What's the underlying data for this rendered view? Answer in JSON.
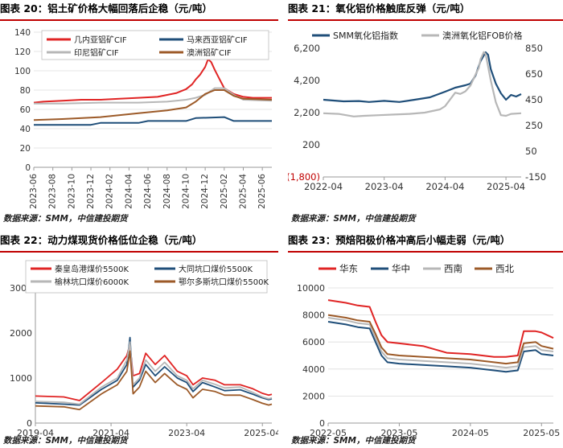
{
  "panels": [
    {
      "title": "图表 20：铝土矿价格大幅回落后企稳（元/吨）",
      "source": "数据来源：SMM，中信建投期货",
      "chart_data": {
        "type": "line",
        "yticks": [
          0,
          20,
          40,
          60,
          80,
          100,
          120,
          140
        ],
        "ylim": [
          0,
          140
        ],
        "xticks": [
          "2023-06",
          "2023-08",
          "2023-10",
          "2023-12",
          "2024-02",
          "2024-04",
          "2024-06",
          "2024-08",
          "2024-10",
          "2024-12",
          "2025-02",
          "2025-04",
          "2025-06"
        ],
        "xrange": [
          "2023-06",
          "2025-07"
        ],
        "series": [
          {
            "name": "几内亚铝矿CIF",
            "color": "#e02424",
            "x": [
              "2023-06",
              "2023-07",
              "2023-09",
              "2023-11",
              "2024-01",
              "2024-03",
              "2024-05",
              "2024-07",
              "2024-08",
              "2024-09",
              "2024-10",
              "2024-10-20",
              "2024-11",
              "2024-11-15",
              "2024-12",
              "2024-12-10",
              "2024-12-20",
              "2025-01",
              "2025-01-15",
              "2025-02",
              "2025-03",
              "2025-04",
              "2025-05",
              "2025-06",
              "2025-07"
            ],
            "y": [
              67,
              68,
              69,
              70,
              70,
              71,
              72,
              73,
              75,
              77,
              81,
              86,
              91,
              96,
              104,
              112,
              109,
              101,
              92,
              82,
              76,
              73,
              72,
              72,
              72
            ]
          },
          {
            "name": "马来西亚铝矿CIF",
            "color": "#1f4e79",
            "x": [
              "2023-06",
              "2023-07",
              "2023-12",
              "2024-01",
              "2024-05",
              "2024-06",
              "2024-10",
              "2024-11",
              "2025-02",
              "2025-03",
              "2025-07"
            ],
            "y": [
              44,
              44,
              44,
              46,
              46,
              48,
              48,
              51,
              52,
              48,
              48
            ]
          },
          {
            "name": "印尼铝矿CIF",
            "color": "#b7b7b7",
            "x": [
              "2023-06",
              "2023-09",
              "2024-01",
              "2024-05",
              "2024-08",
              "2024-10",
              "2024-11",
              "2024-12",
              "2025-01",
              "2025-02",
              "2025-03",
              "2025-04",
              "2025-07"
            ],
            "y": [
              66,
              66,
              67,
              67,
              68,
              70,
              72,
              75,
              82,
              82,
              75,
              70,
              69
            ]
          },
          {
            "name": "澳洲铝矿CIF",
            "color": "#9c5a28",
            "x": [
              "2023-06",
              "2023-09",
              "2024-01",
              "2024-05",
              "2024-08",
              "2024-10",
              "2024-11",
              "2024-12",
              "2025-01",
              "2025-02",
              "2025-03",
              "2025-04",
              "2025-07"
            ],
            "y": [
              49,
              50,
              52,
              56,
              59,
              62,
              68,
              76,
              80,
              80,
              74,
              71,
              70
            ]
          }
        ]
      }
    },
    {
      "title": "图表 21：氧化铝价格触底反弹（元/吨）",
      "source": "数据来源：SMM，中信建投期货",
      "chart_data": {
        "type": "line",
        "yticks_left": [
          "6,200",
          "4,200",
          "2,200",
          "200",
          "(1,800)"
        ],
        "ylim_left": [
          -1800,
          6200
        ],
        "yticks_right": [
          "850",
          "650",
          "450",
          "250",
          "50",
          "-150"
        ],
        "ylim_right": [
          -150,
          850
        ],
        "xticks": [
          "2022-04",
          "2023-04",
          "2024-04",
          "2025-04"
        ],
        "xrange": [
          "2022-04",
          "2025-07"
        ],
        "series": [
          {
            "name": "SMM氧化铝指数",
            "axis": "left",
            "color": "#1f4e79",
            "x": [
              "2022-04",
              "2022-08",
              "2022-11",
              "2023-01",
              "2023-04",
              "2023-07",
              "2023-10",
              "2024-01",
              "2024-04",
              "2024-06",
              "2024-08",
              "2024-09",
              "2024-10",
              "2024-11",
              "2024-11-20",
              "2024-12",
              "2024-12-15",
              "2025-01",
              "2025-02",
              "2025-03",
              "2025-04",
              "2025-05",
              "2025-06",
              "2025-07"
            ],
            "y": [
              3000,
              2900,
              2920,
              2860,
              2930,
              2860,
              3000,
              3150,
              3500,
              3750,
              3900,
              4000,
              4500,
              5400,
              5750,
              5950,
              5800,
              4900,
              4000,
              3400,
              3000,
              3300,
              3200,
              3350
            ]
          },
          {
            "name": "澳洲氧化铝FOB价格",
            "axis": "right",
            "color": "#b7b7b7",
            "x": [
              "2022-04",
              "2022-07",
              "2022-10",
              "2022-12",
              "2023-03",
              "2023-06",
              "2023-09",
              "2023-12",
              "2024-03",
              "2024-04",
              "2024-06",
              "2024-07",
              "2024-08",
              "2024-09",
              "2024-10",
              "2024-10-20",
              "2024-11",
              "2024-11-20",
              "2024-12",
              "2024-12-10",
              "2025-01",
              "2025-02",
              "2025-03",
              "2025-04",
              "2025-05",
              "2025-07"
            ],
            "y": [
              345,
              340,
              320,
              325,
              330,
              335,
              340,
              350,
              375,
              400,
              505,
              495,
              515,
              560,
              645,
              695,
              765,
              820,
              805,
              745,
              600,
              430,
              330,
              325,
              340,
              345
            ]
          }
        ]
      }
    },
    {
      "title": "图表 22：动力煤现货价格低位企稳（元/吨）",
      "source": "数据来源：SMM，中信建投期货",
      "chart_data": {
        "type": "line",
        "yticks": [
          0,
          1000,
          2000,
          3000
        ],
        "ylim": [
          0,
          3000
        ],
        "xticks": [
          "2019-04",
          "2021-04",
          "2023-04",
          "2025-04"
        ],
        "xrange": [
          "2019-04",
          "2025-07"
        ],
        "series": [
          {
            "name": "秦皇岛港煤价5500K",
            "color": "#e02424",
            "x": [
              "2019-04",
              "2020-01",
              "2020-06",
              "2021-01",
              "2021-06",
              "2021-09",
              "2021-10",
              "2021-11",
              "2022-01",
              "2022-03",
              "2022-06",
              "2022-09",
              "2023-01",
              "2023-04",
              "2023-06",
              "2023-09",
              "2024-01",
              "2024-04",
              "2024-09",
              "2025-01",
              "2025-04",
              "2025-06",
              "2025-07"
            ],
            "y": [
              600,
              580,
              500,
              900,
              1200,
              1500,
              1750,
              1050,
              1100,
              1550,
              1300,
              1500,
              1150,
              1050,
              850,
              1000,
              950,
              850,
              850,
              760,
              660,
              620,
              640
            ]
          },
          {
            "name": "大同坑口煤价5500K",
            "color": "#1f4e79",
            "x": [
              "2019-04",
              "2020-01",
              "2020-06",
              "2021-01",
              "2021-06",
              "2021-09",
              "2021-10",
              "2021-11",
              "2022-01",
              "2022-03",
              "2022-06",
              "2022-09",
              "2023-01",
              "2023-04",
              "2023-06",
              "2023-09",
              "2024-01",
              "2024-04",
              "2024-09",
              "2025-01",
              "2025-04",
              "2025-06",
              "2025-07"
            ],
            "y": [
              450,
              420,
              400,
              750,
              950,
              1300,
              1900,
              800,
              950,
              1300,
              1050,
              1250,
              1000,
              900,
              700,
              900,
              800,
              720,
              740,
              640,
              560,
              520,
              540
            ]
          },
          {
            "name": "榆林坑口煤价6000K",
            "color": "#b7b7b7",
            "x": [
              "2019-04",
              "2020-01",
              "2020-06",
              "2021-01",
              "2021-06",
              "2021-09",
              "2021-10",
              "2021-11",
              "2022-01",
              "2022-03",
              "2022-06",
              "2022-09",
              "2023-01",
              "2023-04",
              "2023-06",
              "2023-09",
              "2024-01",
              "2024-04",
              "2024-09",
              "2025-01",
              "2025-04",
              "2025-06",
              "2025-07"
            ],
            "y": [
              480,
              460,
              420,
              800,
              1000,
              1400,
              1800,
              850,
              1000,
              1400,
              1150,
              1350,
              1050,
              950,
              760,
              950,
              860,
              780,
              800,
              680,
              580,
              540,
              560
            ]
          },
          {
            "name": "鄂尔多斯坑口煤价5500K",
            "color": "#9c5a28",
            "x": [
              "2019-04",
              "2020-01",
              "2020-06",
              "2021-01",
              "2021-06",
              "2021-09",
              "2021-10",
              "2021-11",
              "2022-01",
              "2022-03",
              "2022-06",
              "2022-09",
              "2023-01",
              "2023-04",
              "2023-06",
              "2023-09",
              "2024-01",
              "2024-04",
              "2024-09",
              "2025-01",
              "2025-04",
              "2025-06",
              "2025-07"
            ],
            "y": [
              380,
              360,
              300,
              650,
              850,
              1150,
              1600,
              650,
              800,
              1150,
              900,
              1100,
              850,
              750,
              560,
              750,
              700,
              620,
              620,
              520,
              440,
              400,
              420
            ]
          }
        ]
      }
    },
    {
      "title": "图表 23：预焙阳极价格冲高后小幅走弱（元/吨）",
      "source": "数据来源：SMM，中信建投期货",
      "chart_data": {
        "type": "line",
        "yticks": [
          0,
          2000,
          4000,
          6000,
          8000,
          10000
        ],
        "ylim": [
          0,
          10000
        ],
        "xticks": [
          "2022-05",
          "2023-05",
          "2024-05",
          "2025-05"
        ],
        "xrange": [
          "2022-05",
          "2025-07"
        ],
        "series": [
          {
            "name": "华东",
            "color": "#e02424",
            "x": [
              "2022-05",
              "2022-08",
              "2022-10",
              "2022-12",
              "2023-01",
              "2023-02",
              "2023-03",
              "2023-05",
              "2023-09",
              "2024-01",
              "2024-05",
              "2024-09",
              "2024-11",
              "2025-01",
              "2025-02",
              "2025-04",
              "2025-05",
              "2025-07"
            ],
            "y": [
              9100,
              8900,
              8700,
              8600,
              7500,
              6500,
              6000,
              5900,
              5700,
              5200,
              5100,
              4900,
              4900,
              5000,
              6800,
              6800,
              6700,
              6300
            ]
          },
          {
            "name": "华中",
            "color": "#1f4e79",
            "x": [
              "2022-05",
              "2022-08",
              "2022-10",
              "2022-12",
              "2023-01",
              "2023-02",
              "2023-03",
              "2023-05",
              "2023-09",
              "2024-01",
              "2024-05",
              "2024-09",
              "2024-11",
              "2025-01",
              "2025-02",
              "2025-04",
              "2025-05",
              "2025-07"
            ],
            "y": [
              7500,
              7300,
              7100,
              7000,
              6000,
              5000,
              4500,
              4400,
              4300,
              4200,
              4100,
              3900,
              3800,
              3900,
              5300,
              5400,
              5100,
              5000
            ]
          },
          {
            "name": "西南",
            "color": "#b7b7b7",
            "x": [
              "2022-05",
              "2022-08",
              "2022-10",
              "2022-12",
              "2023-01",
              "2023-02",
              "2023-03",
              "2023-05",
              "2023-09",
              "2024-01",
              "2024-05",
              "2024-09",
              "2024-11",
              "2025-01",
              "2025-02",
              "2025-04",
              "2025-05",
              "2025-07"
            ],
            "y": [
              7800,
              7600,
              7400,
              7300,
              6300,
              5300,
              4800,
              4700,
              4600,
              4500,
              4400,
              4200,
              4100,
              4200,
              5600,
              5700,
              5400,
              5300
            ]
          },
          {
            "name": "西北",
            "color": "#9c5a28",
            "x": [
              "2022-05",
              "2022-08",
              "2022-10",
              "2022-12",
              "2023-01",
              "2023-02",
              "2023-03",
              "2023-05",
              "2023-09",
              "2024-01",
              "2024-05",
              "2024-09",
              "2024-11",
              "2025-01",
              "2025-02",
              "2025-04",
              "2025-05",
              "2025-07"
            ],
            "y": [
              8000,
              7800,
              7600,
              7500,
              6600,
              5600,
              5100,
              5000,
              4900,
              4800,
              4700,
              4500,
              4400,
              4500,
              5900,
              6000,
              5700,
              5500
            ]
          }
        ]
      }
    }
  ]
}
